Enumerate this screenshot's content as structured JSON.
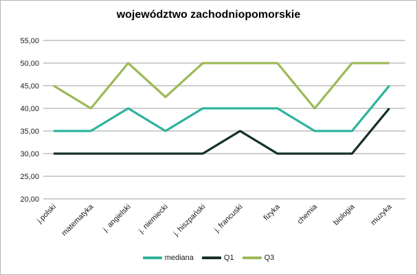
{
  "chart_data": {
    "type": "line",
    "title": "województwo zachodniopomorskie",
    "categories": [
      "j.polski",
      "matematyka",
      "j. angielski",
      "j. niemiecki",
      "j. hiszpański",
      "j. francuski",
      "fizyka",
      "chemia",
      "biologia",
      "muzyka"
    ],
    "series": [
      {
        "name": "mediana",
        "color": "#2eb49c",
        "values": [
          35,
          35,
          40,
          35,
          40,
          40,
          40,
          35,
          35,
          45
        ]
      },
      {
        "name": "Q1",
        "color": "#14302a",
        "values": [
          30,
          30,
          30,
          30,
          30,
          35,
          30,
          30,
          30,
          40
        ]
      },
      {
        "name": "Q3",
        "color": "#9dba58",
        "values": [
          45,
          40,
          50,
          42.5,
          50,
          50,
          50,
          40,
          50,
          50
        ]
      }
    ],
    "y_axis": {
      "min": 20,
      "max": 55,
      "step": 5,
      "ticks": [
        {
          "value": 55,
          "label": "55,00"
        },
        {
          "value": 50,
          "label": "50,00"
        },
        {
          "value": 45,
          "label": "45,00"
        },
        {
          "value": 40,
          "label": "40,00"
        },
        {
          "value": 35,
          "label": "35,00"
        },
        {
          "value": 30,
          "label": "30,00"
        },
        {
          "value": 25,
          "label": "25,00"
        },
        {
          "value": 20,
          "label": "20,00"
        }
      ]
    },
    "x_axis": {
      "label_rotation_deg": 45
    },
    "grid": true,
    "legend_position": "bottom"
  },
  "colors": {
    "gridline": "#9d9d9d",
    "frame_border": "#b3b3b3",
    "text": "#1a1a1a",
    "background": "#ffffff"
  }
}
